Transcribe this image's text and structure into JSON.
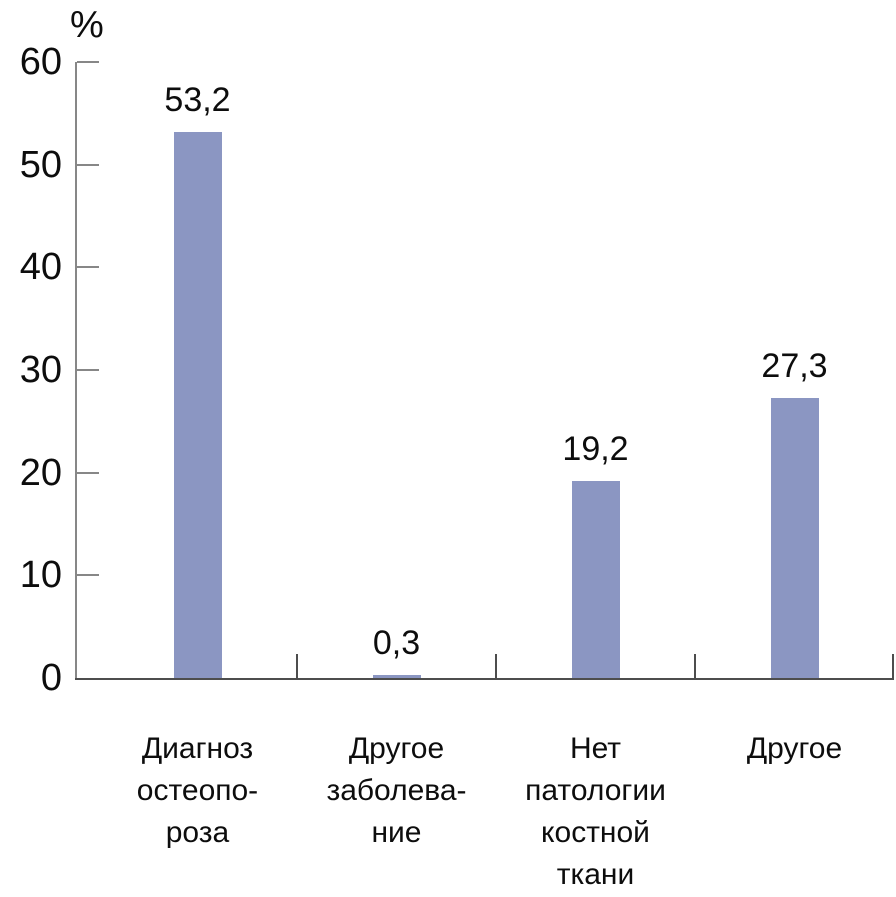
{
  "figure": {
    "background": "#ffffff"
  },
  "style": {
    "bar_color": "#8b96c2",
    "y_axis_color": "#878787",
    "x_axis_color": "#4d4d4d",
    "text_color": "#0d0d0d"
  },
  "chart_data": {
    "type": "bar",
    "title": "",
    "xlabel": "",
    "ylabel": "%",
    "categories": [
      "Диагноз остеопо-роза",
      "Другое заболева-ние",
      "Нет патологии костной ткани",
      "Другое"
    ],
    "category_lines": [
      [
        "Диагноз",
        "остеопо-",
        "роза"
      ],
      [
        "Другое",
        "заболева-",
        "ние"
      ],
      [
        "Нет",
        "патологии",
        "костной",
        "ткани"
      ],
      [
        "Другое"
      ]
    ],
    "values": [
      53.2,
      0.3,
      19.2,
      27.3
    ],
    "value_labels": [
      "53,2",
      "0,3",
      "19,2",
      "27,3"
    ],
    "ylim": [
      0,
      60
    ],
    "yticks": [
      0,
      10,
      20,
      30,
      40,
      50,
      60
    ],
    "grid": false,
    "legend": "none"
  }
}
